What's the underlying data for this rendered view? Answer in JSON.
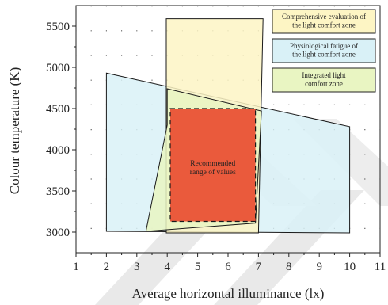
{
  "chart_data": {
    "type": "area",
    "xlabel": "Average horizontal illuminance (lx)",
    "ylabel": "Colour temperature (K)",
    "xlim": [
      1,
      11
    ],
    "ylim": [
      2750,
      5750
    ],
    "xticks": [
      1,
      2,
      3,
      4,
      5,
      6,
      7,
      8,
      9,
      10,
      11
    ],
    "yticks": [
      3000,
      3500,
      4000,
      4500,
      5000,
      5500
    ],
    "grid": "dotted",
    "legend_position": "top-right",
    "series": [
      {
        "name": "Physiological fatigue of the light comfort zone",
        "color": "#d9f1f7",
        "polygon": [
          [
            2,
            4930
          ],
          [
            10,
            4280
          ],
          [
            10,
            2990
          ],
          [
            2,
            3010
          ]
        ]
      },
      {
        "name": "Comprehensive evaluation of the light comfort zone",
        "color": "#fdf5c4",
        "polygon": [
          [
            3.97,
            5590
          ],
          [
            7.15,
            5590
          ],
          [
            7.0,
            2990
          ],
          [
            3.97,
            2990
          ]
        ]
      },
      {
        "name": "Integrated light comfort zone",
        "color": "#e9f5c2",
        "polygon": [
          [
            4.0,
            4740
          ],
          [
            7.1,
            4470
          ],
          [
            6.9,
            3110
          ],
          [
            3.3,
            3010
          ],
          [
            4.0,
            4300
          ]
        ]
      },
      {
        "name": "Recommended range of values",
        "color": "#ea5a3c",
        "dashed": true,
        "polygon": [
          [
            4.1,
            4500
          ],
          [
            6.9,
            4500
          ],
          [
            6.9,
            3130
          ],
          [
            4.1,
            3130
          ]
        ]
      }
    ],
    "legend": [
      {
        "label_lines": [
          "Comprehensive evaluation of",
          "the light comfort zone"
        ],
        "color": "#fdf5c4"
      },
      {
        "label_lines": [
          "Physiological fatigue of",
          "the light comfort zone"
        ],
        "color": "#d9f1f7"
      },
      {
        "label_lines": [
          "Integrated light",
          "comfort zone"
        ],
        "color": "#e9f5c2"
      }
    ],
    "annotation_lines": [
      "Recommended",
      "range of values"
    ]
  }
}
